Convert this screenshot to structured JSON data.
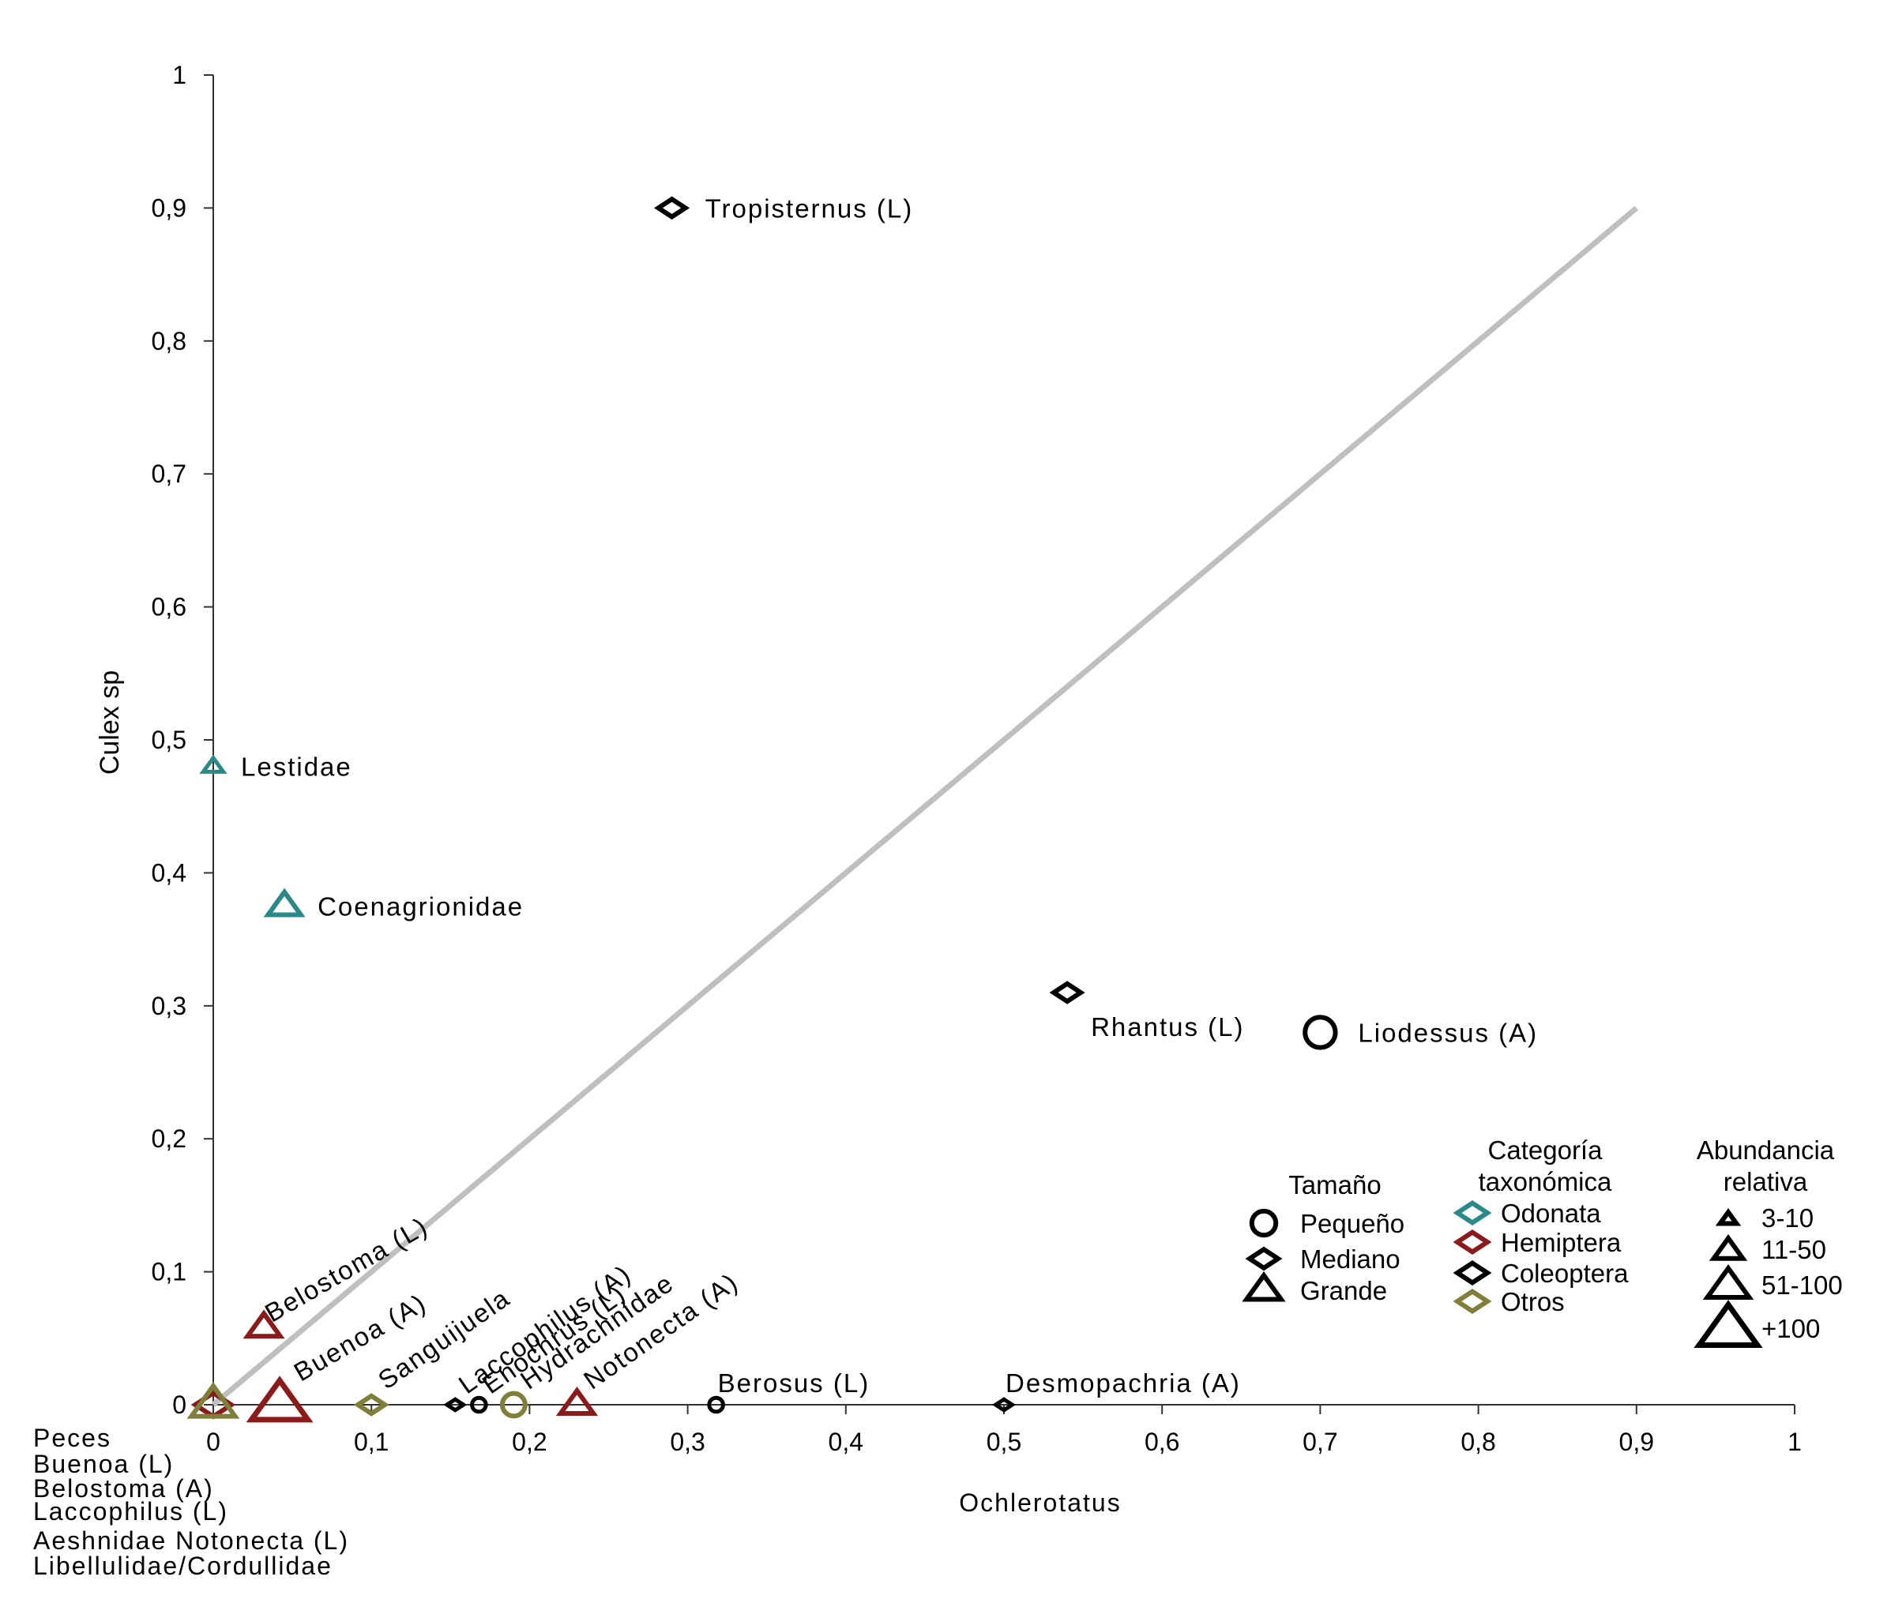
{
  "chart_data": {
    "type": "scatter",
    "xlabel": "Ochlerotatus",
    "ylabel": "Culex sp",
    "xlim": [
      0,
      1
    ],
    "ylim": [
      0,
      1
    ],
    "x_ticks": [
      "0",
      "0,1",
      "0,2",
      "0,3",
      "0,4",
      "0,5",
      "0,6",
      "0,7",
      "0,8",
      "0,9",
      "1"
    ],
    "y_ticks": [
      "0",
      "0,1",
      "0,2",
      "0,3",
      "0,4",
      "0,5",
      "0,6",
      "0,7",
      "0,8",
      "0,9",
      "1"
    ],
    "reference_line": {
      "from": [
        0,
        0
      ],
      "to": [
        0.9,
        0.9
      ],
      "color": "#bfbfbf"
    },
    "colors": {
      "Odonata": "#2a8a8a",
      "Hemiptera": "#8b1a1a",
      "Coleoptera": "#000000",
      "Otros": "#7f7f3a"
    },
    "points": [
      {
        "label": "Tropisternus (L)",
        "x": 0.29,
        "y": 0.9,
        "size": "Mediano",
        "category": "Coleoptera",
        "abundance": "11-50",
        "label_angle": 0
      },
      {
        "label": "Lestidae",
        "x": 0.0,
        "y": 0.48,
        "size": "Grande",
        "category": "Odonata",
        "abundance": "3-10",
        "label_angle": 0
      },
      {
        "label": "Coenagrionidae",
        "x": 0.045,
        "y": 0.375,
        "size": "Grande",
        "category": "Odonata",
        "abundance": "11-50",
        "label_angle": 0
      },
      {
        "label": "Rhantus (L)",
        "x": 0.54,
        "y": 0.31,
        "size": "Mediano",
        "category": "Coleoptera",
        "abundance": "11-50",
        "label_angle": 0
      },
      {
        "label": "Liodessus (A)",
        "x": 0.7,
        "y": 0.28,
        "size": "Pequeño",
        "category": "Coleoptera",
        "abundance": "51-100",
        "label_angle": 0
      },
      {
        "label": "Belostoma (L)",
        "x": 0.032,
        "y": 0.058,
        "size": "Grande",
        "category": "Hemiptera",
        "abundance": "11-50",
        "label_angle": -30
      },
      {
        "label": "Buenoa (A)",
        "x": 0.042,
        "y": 0.0,
        "size": "Grande",
        "category": "Hemiptera",
        "abundance": "+100",
        "label_angle": -30
      },
      {
        "label": "Sanguijuela",
        "x": 0.1,
        "y": 0.0,
        "size": "Mediano",
        "category": "Otros",
        "abundance": "11-50",
        "label_angle": -35
      },
      {
        "label": "Laccophilus (A)",
        "x": 0.153,
        "y": 0.0,
        "size": "Mediano",
        "category": "Coleoptera",
        "abundance": "3-10",
        "label_angle": -35
      },
      {
        "label": "Enochrus (L)",
        "x": 0.168,
        "y": 0.0,
        "size": "Pequeño",
        "category": "Coleoptera",
        "abundance": "3-10",
        "label_angle": -35
      },
      {
        "label": "Hydrachnidae",
        "x": 0.19,
        "y": 0.0,
        "size": "Pequeño",
        "category": "Otros",
        "abundance": "11-50",
        "label_angle": -35
      },
      {
        "label": "Notonecta (A)",
        "x": 0.23,
        "y": 0.0,
        "size": "Grande",
        "category": "Hemiptera",
        "abundance": "11-50",
        "label_angle": -35
      },
      {
        "label": "Berosus (L)",
        "x": 0.318,
        "y": 0.0,
        "size": "Pequeño",
        "category": "Coleoptera",
        "abundance": "3-10",
        "label_angle": 0
      },
      {
        "label": "Desmopachria (A)",
        "x": 0.5,
        "y": 0.0,
        "size": "Mediano",
        "category": "Coleoptera",
        "abundance": "3-10",
        "label_angle": 0
      },
      {
        "label": "",
        "x": 0.0,
        "y": 0.0,
        "size": "Mediano",
        "category": "Hemiptera",
        "abundance": "51-100",
        "label_angle": 0
      },
      {
        "label": "",
        "x": 0.0,
        "y": 0.0,
        "size": "Grande",
        "category": "Otros",
        "abundance": "51-100",
        "label_angle": 0
      }
    ],
    "origin_cluster_labels": [
      "Peces",
      "Buenoa (L)",
      "Belostoma (A)",
      "Laccophilus (L)",
      "Aeshnidae Notonecta (L)",
      "Libellulidae/Cordullidae"
    ],
    "legend": {
      "size": {
        "title": "Tamaño",
        "items": [
          {
            "label": "Pequeño",
            "shape": "circle"
          },
          {
            "label": "Mediano",
            "shape": "diamond"
          },
          {
            "label": "Grande",
            "shape": "triangle"
          }
        ]
      },
      "category": {
        "title_line1": "Categoría",
        "title_line2": "taxonómica",
        "items": [
          {
            "label": "Odonata"
          },
          {
            "label": "Hemiptera"
          },
          {
            "label": "Coleoptera"
          },
          {
            "label": "Otros"
          }
        ]
      },
      "abundance": {
        "title_line1": "Abundancia",
        "title_line2": "relativa",
        "items": [
          {
            "label": "3-10"
          },
          {
            "label": "11-50"
          },
          {
            "label": "51-100"
          },
          {
            "label": "+100"
          }
        ]
      }
    }
  }
}
